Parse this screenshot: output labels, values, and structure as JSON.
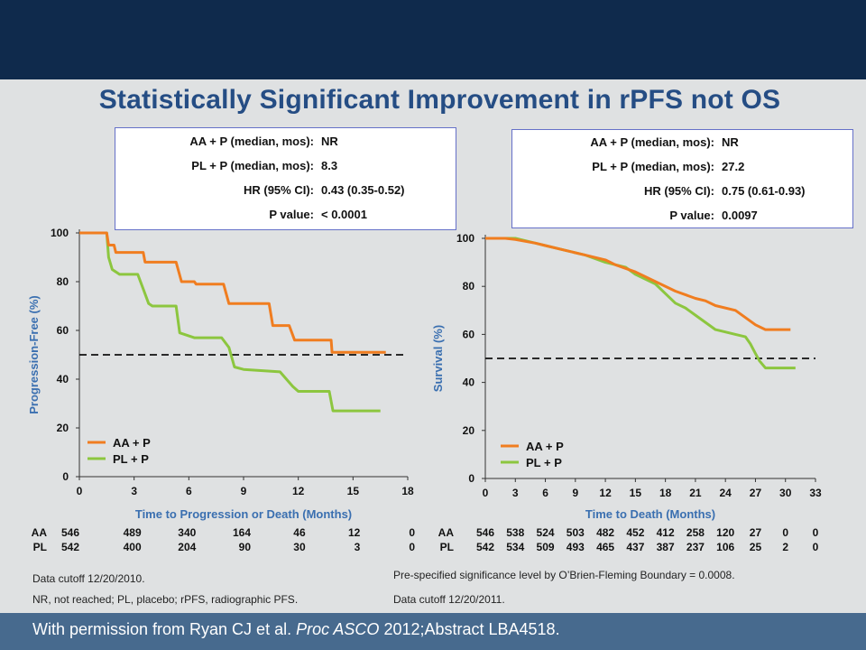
{
  "slide_title": "Statistically Significant Improvement in rPFS not OS",
  "stats_left": [
    {
      "label": "AA + P (median, mos):",
      "value": "NR"
    },
    {
      "label": "PL + P (median, mos):",
      "value": "8.3"
    },
    {
      "label": "HR (95% CI):",
      "value": "0.43 (0.35-0.52)"
    },
    {
      "label": "P value:",
      "value": "< 0.0001"
    }
  ],
  "stats_right": [
    {
      "label": "AA + P (median, mos):",
      "value": "NR"
    },
    {
      "label": "PL + P (median, mos):",
      "value": "27.2"
    },
    {
      "label": "HR (95% CI):",
      "value": "0.75 (0.61-0.93)"
    },
    {
      "label": "P value:",
      "value": "0.0097"
    }
  ],
  "colors": {
    "aa": "#f07d20",
    "pl": "#8cc63f",
    "axis_title": "#3a6fb0",
    "title": "#254d84"
  },
  "notes": {
    "left_1": "Data cutoff 12/20/2010.",
    "left_2": "NR, not reached; PL, placebo; rPFS, radiographic PFS.",
    "right_1": "Pre-specified significance level by O’Brien-Fleming Boundary = 0.0008.",
    "right_2": "Data cutoff 12/20/2011."
  },
  "footer": {
    "pre": "With permission from Ryan CJ et al. ",
    "journal": "Proc ASCO",
    "post": " 2012;Abstract LBA4518."
  },
  "chart_data": [
    {
      "type": "line",
      "xlabel": "Time to Progression or Death (Months)",
      "ylabel": "Progression-Free (%)",
      "xlim": [
        0,
        18
      ],
      "ylim": [
        0,
        100
      ],
      "x_ticks": [
        "0",
        "3",
        "6",
        "9",
        "12",
        "15",
        "18"
      ],
      "y_ticks": [
        "0",
        "20",
        "40",
        "60",
        "80",
        "100"
      ],
      "reference_line_y": 50,
      "legend_placement": "bottom-left",
      "series": [
        {
          "name": "AA + P",
          "step": true,
          "points": [
            [
              0,
              100
            ],
            [
              1.5,
              100
            ],
            [
              1.6,
              95
            ],
            [
              1.9,
              95
            ],
            [
              2.0,
              92
            ],
            [
              3.5,
              92
            ],
            [
              3.6,
              88
            ],
            [
              5.3,
              88
            ],
            [
              5.6,
              80
            ],
            [
              6.3,
              80
            ],
            [
              6.4,
              79
            ],
            [
              7.9,
              79
            ],
            [
              8.2,
              71
            ],
            [
              10.4,
              71
            ],
            [
              10.6,
              62
            ],
            [
              11.5,
              62
            ],
            [
              11.8,
              56
            ],
            [
              13.8,
              56
            ],
            [
              13.85,
              51
            ],
            [
              16.8,
              51
            ]
          ]
        },
        {
          "name": "PL + P",
          "step": true,
          "points": [
            [
              0,
              100
            ],
            [
              1.5,
              100
            ],
            [
              1.6,
              90
            ],
            [
              1.8,
              85
            ],
            [
              2.2,
              83
            ],
            [
              3.2,
              83
            ],
            [
              3.5,
              77
            ],
            [
              3.8,
              71
            ],
            [
              4.0,
              70
            ],
            [
              5.3,
              70
            ],
            [
              5.5,
              59
            ],
            [
              6.3,
              57
            ],
            [
              7.8,
              57
            ],
            [
              8.2,
              53
            ],
            [
              8.5,
              45
            ],
            [
              9.0,
              44
            ],
            [
              11.0,
              43
            ],
            [
              11.7,
              37
            ],
            [
              12.0,
              35
            ],
            [
              13.7,
              35
            ],
            [
              13.9,
              27
            ],
            [
              16.5,
              27
            ]
          ]
        }
      ],
      "at_risk": {
        "x_positions": [
          0,
          3,
          6,
          9,
          12,
          15,
          18
        ],
        "rows": [
          {
            "label": "AA",
            "values": [
              "546",
              "489",
              "340",
              "164",
              "46",
              "12",
              "0"
            ]
          },
          {
            "label": "PL",
            "values": [
              "542",
              "400",
              "204",
              "90",
              "30",
              "3",
              "0"
            ]
          }
        ]
      }
    },
    {
      "type": "line",
      "xlabel": "Time to Death (Months)",
      "ylabel": "Survival (%)",
      "xlim": [
        0,
        33
      ],
      "ylim": [
        0,
        100
      ],
      "x_ticks": [
        "0",
        "3",
        "6",
        "9",
        "12",
        "15",
        "18",
        "21",
        "24",
        "27",
        "30",
        "33"
      ],
      "y_ticks": [
        "0",
        "20",
        "40",
        "60",
        "80",
        "100"
      ],
      "reference_line_y": 50,
      "legend_placement": "bottom-left",
      "series": [
        {
          "name": "AA + P",
          "step": true,
          "points": [
            [
              0,
              100
            ],
            [
              2,
              100
            ],
            [
              3,
              99.5
            ],
            [
              5,
              98
            ],
            [
              6,
              97
            ],
            [
              8,
              95
            ],
            [
              10,
              93
            ],
            [
              12,
              91
            ],
            [
              13,
              89
            ],
            [
              15,
              86
            ],
            [
              17,
              82
            ],
            [
              19,
              78
            ],
            [
              21,
              75
            ],
            [
              22,
              74
            ],
            [
              23,
              72
            ],
            [
              25,
              70
            ],
            [
              26,
              67
            ],
            [
              27,
              64
            ],
            [
              28,
              62
            ],
            [
              30.5,
              62
            ]
          ]
        },
        {
          "name": "PL + P",
          "step": true,
          "points": [
            [
              0,
              100
            ],
            [
              3,
              100
            ],
            [
              5,
              98
            ],
            [
              6,
              97
            ],
            [
              8,
              95
            ],
            [
              10,
              93
            ],
            [
              12,
              90
            ],
            [
              14,
              88
            ],
            [
              15,
              85
            ],
            [
              17,
              81
            ],
            [
              18,
              77
            ],
            [
              19,
              73
            ],
            [
              20,
              71
            ],
            [
              21,
              68
            ],
            [
              22,
              65
            ],
            [
              23,
              62
            ],
            [
              25,
              60
            ],
            [
              26,
              59
            ],
            [
              26.5,
              56
            ],
            [
              27,
              52
            ],
            [
              27.4,
              49
            ],
            [
              28,
              46
            ],
            [
              31,
              46
            ]
          ]
        }
      ],
      "at_risk": {
        "x_positions": [
          0,
          3,
          6,
          9,
          12,
          15,
          18,
          21,
          24,
          27,
          30,
          33
        ],
        "rows": [
          {
            "label": "AA",
            "values": [
              "546",
              "538",
              "524",
              "503",
              "482",
              "452",
              "412",
              "258",
              "120",
              "27",
              "0",
              "0"
            ]
          },
          {
            "label": "PL",
            "values": [
              "542",
              "534",
              "509",
              "493",
              "465",
              "437",
              "387",
              "237",
              "106",
              "25",
              "2",
              "0"
            ]
          }
        ]
      }
    }
  ]
}
